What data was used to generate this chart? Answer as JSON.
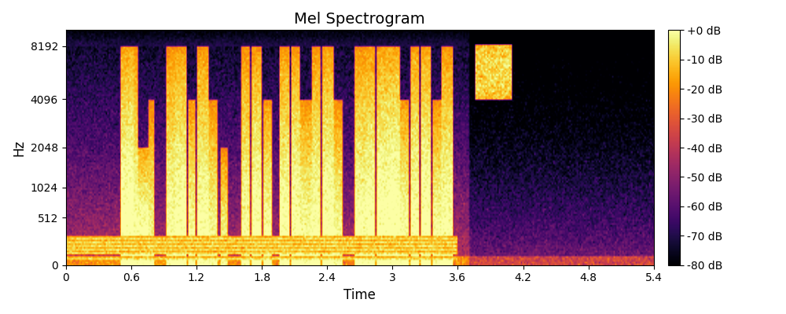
{
  "title": "Mel Spectrogram",
  "xlabel": "Time",
  "ylabel": "Hz",
  "time_min": 0,
  "time_max": 5.4,
  "vmin": -80,
  "vmax": 0,
  "colorbar_ticks": [
    0,
    -10,
    -20,
    -30,
    -40,
    -50,
    -60,
    -70,
    -80
  ],
  "colorbar_labels": [
    "+0 dB",
    "-10 dB",
    "-20 dB",
    "-30 dB",
    "-40 dB",
    "-50 dB",
    "-60 dB",
    "-70 dB",
    "-80 dB"
  ],
  "xticks": [
    0,
    0.6,
    1.2,
    1.8,
    2.4,
    3.0,
    3.6,
    4.2,
    4.8,
    5.4
  ],
  "yticks": [
    0,
    512,
    1024,
    2048,
    4096,
    8192
  ],
  "ytick_labels": [
    "0",
    "512",
    "1024",
    "2048",
    "4096",
    "8192"
  ],
  "colormap": "inferno",
  "seed": 12345,
  "n_time": 400,
  "n_freq": 128,
  "f_max_hz": 10000,
  "background_color": "#ffffff",
  "title_fontsize": 14
}
